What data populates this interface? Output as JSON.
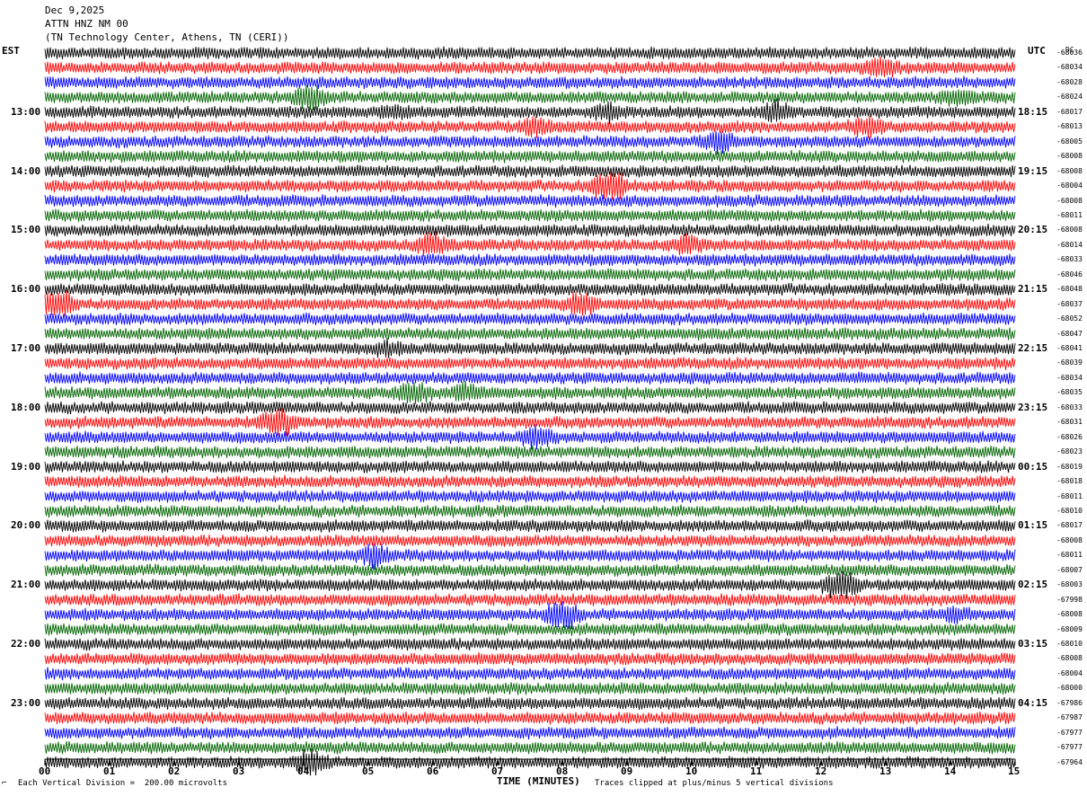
{
  "header": {
    "date": "Dec 9,2025",
    "station": "ATTN HNZ NM 00",
    "location": "(TN Technology Center, Athens, TN (CERI))"
  },
  "left_axis_title": "EST",
  "right_axis_title": "UTC",
  "dc_label": "DC",
  "left_time_labels": [
    "13:00",
    "14:00",
    "15:00",
    "16:00",
    "17:00",
    "18:00",
    "19:00",
    "20:00",
    "21:00",
    "22:00",
    "23:00"
  ],
  "right_time_labels": [
    "18:15",
    "19:15",
    "20:15",
    "21:15",
    "22:15",
    "23:15",
    "00:15",
    "01:15",
    "02:15",
    "03:15",
    "04:15"
  ],
  "dc_offsets": [
    "-68036",
    "-68034",
    "-68028",
    "-68024",
    "-68017",
    "-68013",
    "-68005",
    "-68008",
    "-68008",
    "-68004",
    "-68008",
    "-68011",
    "-68008",
    "-68014",
    "-68033",
    "-68046",
    "-68048",
    "-68037",
    "-68052",
    "-68047",
    "-68041",
    "-68039",
    "-68034",
    "-68035",
    "-68033",
    "-68031",
    "-68026",
    "-68023",
    "-68019",
    "-68018",
    "-68011",
    "-68010",
    "-68017",
    "-68008",
    "-68011",
    "-68007",
    "-68003",
    "-67998",
    "-68008",
    "-68009",
    "-68010",
    "-68008",
    "-68004",
    "-68000",
    "-67986",
    "-67987",
    "-67977",
    "-67977",
    "-67964"
  ],
  "footer": {
    "vertical_division": "Each Vertical Division =  200.00 microvolts",
    "time_axis_title": "TIME (MINUTES)",
    "clip_note": "Traces clipped at plus/minus 5 vertical divisions"
  },
  "chart_data": {
    "type": "line",
    "title": "ATTN HNZ NM 00",
    "xlabel": "TIME (MINUTES)",
    "x_ticks": [
      "00",
      "01",
      "02",
      "03",
      "04",
      "05",
      "06",
      "07",
      "08",
      "09",
      "10",
      "11",
      "12",
      "13",
      "14",
      "15"
    ],
    "xlim": [
      0,
      15
    ],
    "trace_minutes": 15,
    "trace_count": 49,
    "colors_cycle": [
      "#000000",
      "#ff0000",
      "#0000ff",
      "#006400"
    ],
    "events": [
      {
        "trace": 1,
        "minute": 12.9,
        "amp": 1.6
      },
      {
        "trace": 3,
        "minute": 4.1,
        "amp": 1.7
      },
      {
        "trace": 3,
        "minute": 14.1,
        "amp": 1.5
      },
      {
        "trace": 4,
        "minute": 5.4,
        "amp": 1.4
      },
      {
        "trace": 4,
        "minute": 8.7,
        "amp": 1.5
      },
      {
        "trace": 4,
        "minute": 11.3,
        "amp": 1.6
      },
      {
        "trace": 5,
        "minute": 7.6,
        "amp": 1.5
      },
      {
        "trace": 5,
        "minute": 12.7,
        "amp": 1.6
      },
      {
        "trace": 6,
        "minute": 10.4,
        "amp": 1.6
      },
      {
        "trace": 9,
        "minute": 8.7,
        "amp": 2.6
      },
      {
        "trace": 13,
        "minute": 6.0,
        "amp": 1.7
      },
      {
        "trace": 13,
        "minute": 9.9,
        "amp": 1.5
      },
      {
        "trace": 17,
        "minute": 0.2,
        "amp": 2.0
      },
      {
        "trace": 17,
        "minute": 8.3,
        "amp": 1.7
      },
      {
        "trace": 20,
        "minute": 5.3,
        "amp": 1.4
      },
      {
        "trace": 23,
        "minute": 5.7,
        "amp": 1.6
      },
      {
        "trace": 23,
        "minute": 6.5,
        "amp": 1.5
      },
      {
        "trace": 25,
        "minute": 3.6,
        "amp": 1.8
      },
      {
        "trace": 26,
        "minute": 7.6,
        "amp": 1.7
      },
      {
        "trace": 34,
        "minute": 5.1,
        "amp": 1.6
      },
      {
        "trace": 36,
        "minute": 12.3,
        "amp": 1.9
      },
      {
        "trace": 38,
        "minute": 8.0,
        "amp": 2.1
      },
      {
        "trace": 38,
        "minute": 14.1,
        "amp": 1.4
      },
      {
        "trace": 48,
        "minute": 4.1,
        "amp": 1.9
      }
    ]
  }
}
